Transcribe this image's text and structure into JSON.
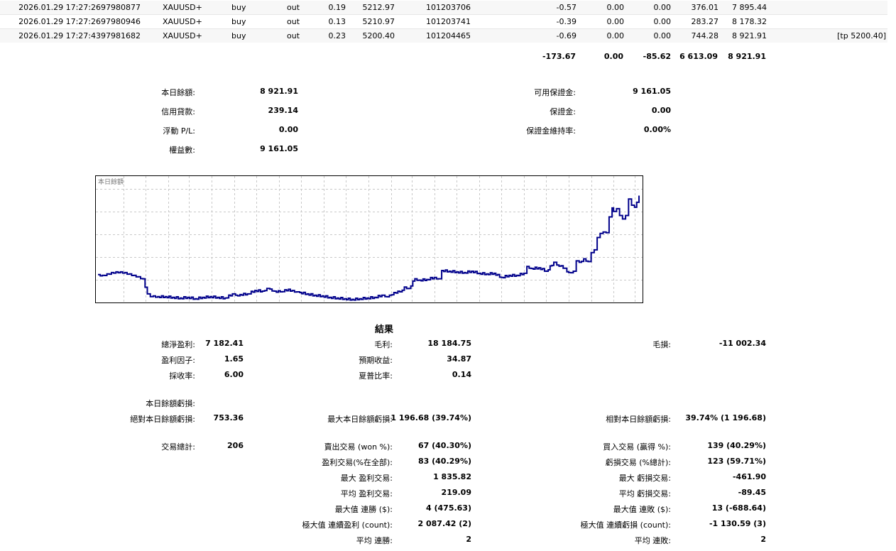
{
  "trades": {
    "rows": [
      {
        "time": "2026.01.29 17:27:26",
        "deal": "97980877",
        "symbol": "XAUUSD+",
        "type": "buy",
        "direction": "out",
        "volume": "0.19",
        "price": "5212.97",
        "order": "101203706",
        "commission": "-0.57",
        "fee": "0.00",
        "swap": "0.00",
        "profit": "376.01",
        "balance": "7 895.44",
        "comment": ""
      },
      {
        "time": "2026.01.29 17:27:26",
        "deal": "97980946",
        "symbol": "XAUUSD+",
        "type": "buy",
        "direction": "out",
        "volume": "0.13",
        "price": "5210.97",
        "order": "101203741",
        "commission": "-0.39",
        "fee": "0.00",
        "swap": "0.00",
        "profit": "283.27",
        "balance": "8 178.32",
        "comment": ""
      },
      {
        "time": "2026.01.29 17:27:43",
        "deal": "97981682",
        "symbol": "XAUUSD+",
        "type": "buy",
        "direction": "out",
        "volume": "0.23",
        "price": "5200.40",
        "order": "101204465",
        "commission": "-0.69",
        "fee": "0.00",
        "swap": "0.00",
        "profit": "744.28",
        "balance": "8 921.91",
        "comment": "[tp 5200.40]"
      }
    ],
    "totals": {
      "commission": "-173.67",
      "fee": "0.00",
      "swap": "-85.62",
      "profit": "6 613.09",
      "balance": "8 921.91"
    }
  },
  "account": {
    "balance_label": "本日餘額:",
    "balance_value": "8 921.91",
    "credit_label": "信用貸款:",
    "credit_value": "239.14",
    "floating_label": "浮動 P/L:",
    "floating_value": "0.00",
    "equity_label": "權益數:",
    "equity_value": "9 161.05",
    "free_margin_label": "可用保證金:",
    "free_margin_value": "9 161.05",
    "margin_label": "保證金:",
    "margin_value": "0.00",
    "margin_level_label": "保證金維持率:",
    "margin_level_value": "0.00%"
  },
  "chart_data": {
    "type": "line",
    "title": "本日餘額",
    "x_ticks": [
      "0",
      "17",
      "32",
      "47",
      "61",
      "76",
      "91",
      "106",
      "121",
      "136",
      "151",
      "166",
      "181",
      "196",
      "210",
      "225",
      "240",
      "255",
      "270",
      "285",
      "300",
      "315",
      "330",
      "345",
      "359"
    ],
    "y_ticks": [
      "8839",
      "7186",
      "5533",
      "3881",
      "2228",
      "575"
    ],
    "xlim": [
      0,
      362
    ],
    "ylim": [
      575,
      8839
    ],
    "grid": true,
    "line_color": "#00008b",
    "series": [
      {
        "x": [
          0,
          3,
          6,
          9,
          12,
          15,
          18,
          21,
          24,
          27,
          30,
          33,
          35,
          37,
          40,
          45,
          50,
          55,
          60,
          65,
          70,
          75,
          80,
          85,
          90,
          92,
          95,
          100,
          105,
          110,
          113,
          115,
          118,
          122,
          125,
          130,
          133,
          135,
          140,
          145,
          150,
          155,
          160,
          165,
          170,
          175,
          180,
          185,
          190,
          192,
          195,
          198,
          202,
          205,
          208,
          212,
          215,
          220,
          225,
          228,
          230,
          235,
          240,
          245,
          250,
          255,
          260,
          265,
          270,
          275,
          280,
          285,
          287,
          290,
          295,
          300,
          305,
          307,
          310,
          315,
          318,
          320,
          322,
          325,
          328,
          330,
          332,
          334,
          336,
          338,
          340,
          342,
          344,
          345,
          347,
          349,
          351,
          353,
          355,
          357,
          359,
          362
        ],
        "y": [
          2600,
          2550,
          2650,
          2750,
          2800,
          2800,
          2750,
          2650,
          2550,
          2450,
          2300,
          1200,
          1000,
          1050,
          1000,
          1000,
          950,
          900,
          950,
          850,
          950,
          1000,
          950,
          900,
          1200,
          1100,
          1150,
          1200,
          1450,
          1400,
          1600,
          1550,
          1400,
          1350,
          1500,
          1450,
          1350,
          1300,
          1200,
          1100,
          1050,
          950,
          900,
          850,
          800,
          850,
          900,
          950,
          1100,
          1000,
          1100,
          1300,
          1350,
          1700,
          1600,
          2300,
          2200,
          2250,
          2400,
          2300,
          2900,
          2850,
          2800,
          2750,
          2850,
          2700,
          2650,
          2700,
          2400,
          2550,
          2550,
          2700,
          3200,
          3050,
          3100,
          2850,
          3500,
          3300,
          3250,
          2750,
          2850,
          3600,
          3500,
          3750,
          3550,
          4200,
          4400,
          5300,
          5600,
          5700,
          5650,
          6800,
          7450,
          7200,
          7400,
          6900,
          6650,
          6900,
          8100,
          7650,
          7500,
          8350
        ]
      }
    ]
  },
  "results": {
    "title": "結果",
    "net_profit_label": "總淨盈利:",
    "net_profit_value": "7 182.41",
    "gross_profit_label": "毛利:",
    "gross_profit_value": "18 184.75",
    "gross_loss_label": "毛損:",
    "gross_loss_value": "-11 002.34",
    "profit_factor_label": "盈利因子:",
    "profit_factor_value": "1.65",
    "expected_payoff_label": "預期收益:",
    "expected_payoff_value": "34.87",
    "recovery_factor_label": "採收率:",
    "recovery_factor_value": "6.00",
    "sharpe_label": "夏普比率:",
    "sharpe_value": "0.14",
    "drawdown_header": "本日餘額虧損:",
    "abs_dd_label": "絕對本日餘額虧損:",
    "abs_dd_value": "753.36",
    "max_dd_label": "最大本日餘額虧損:",
    "max_dd_value": "1 196.68 (39.74%)",
    "rel_dd_label": "相對本日餘額虧損:",
    "rel_dd_value": "39.74% (1 196.68)",
    "total_trades_label": "交易總計:",
    "total_trades_value": "206",
    "short_trades_label": "賣出交易 (won %):",
    "short_trades_value": "67 (40.30%)",
    "long_trades_label": "買入交易 (贏得 %):",
    "long_trades_value": "139 (40.29%)",
    "profit_trades_label": "盈利交易(%在全部):",
    "profit_trades_value": "83 (40.29%)",
    "loss_trades_label": "虧損交易 (%總計):",
    "loss_trades_value": "123 (59.71%)",
    "largest_profit_label": "最大 盈利交易:",
    "largest_profit_value": "1 835.82",
    "largest_loss_label": "最大 虧損交易:",
    "largest_loss_value": "-461.90",
    "avg_profit_label": "平均 盈利交易:",
    "avg_profit_value": "219.09",
    "avg_loss_label": "平均 虧損交易:",
    "avg_loss_value": "-89.45",
    "max_cons_wins_label": "最大值 連勝 ($):",
    "max_cons_wins_value": "4 (475.63)",
    "max_cons_losses_label": "最大值 連敗 ($):",
    "max_cons_losses_value": "13 (-688.64)",
    "max_cons_profit_label": "極大值 連續盈利 (count):",
    "max_cons_profit_value": "2 087.42 (2)",
    "max_cons_loss_label": "極大值 連續虧損 (count):",
    "max_cons_loss_value": "-1 130.59 (3)",
    "avg_cons_wins_label": "平均 連勝:",
    "avg_cons_wins_value": "2",
    "avg_cons_losses_label": "平均 連敗:",
    "avg_cons_losses_value": "2"
  }
}
